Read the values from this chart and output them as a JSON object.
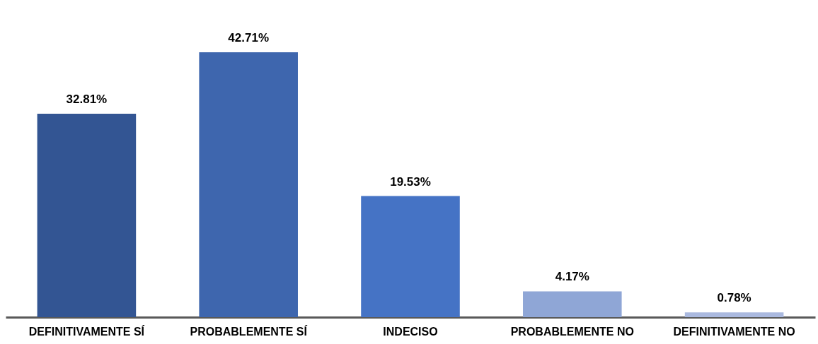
{
  "chart_data": {
    "type": "bar",
    "categories": [
      "DEFINITIVAMENTE SÍ",
      "PROBABLEMENTE SÍ",
      "INDECISO",
      "PROBABLEMENTE NO",
      "DEFINITIVAMENTE NO"
    ],
    "values": [
      32.81,
      42.71,
      19.53,
      4.17,
      0.78
    ],
    "colors": [
      "#335593",
      "#3e66ae",
      "#4573c5",
      "#8fa6d6",
      "#aab9df"
    ],
    "value_labels": [
      "32.81%",
      "42.71%",
      "19.53%",
      "4.17%",
      "0.78%"
    ],
    "grid": false,
    "legend": false
  }
}
